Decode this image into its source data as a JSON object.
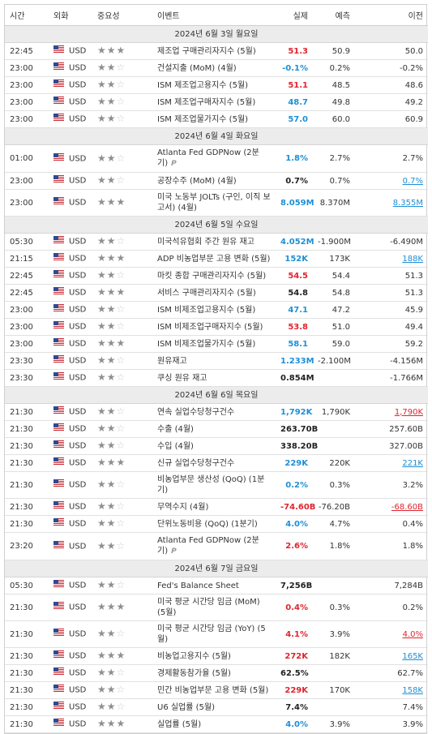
{
  "header": {
    "columns": [
      "시간",
      "외화",
      "중요성",
      "이벤트",
      "실제",
      "예측",
      "이전"
    ]
  },
  "days": [
    {
      "date": "2024년 6월 3일 월요일",
      "events": [
        {
          "time": "22:45",
          "currency": "USD",
          "importance": 3,
          "event": "제조업 구매관리자지수 (5월)",
          "actual": "51.3",
          "actual_color": "red",
          "forecast": "50.9",
          "previous": "50.0"
        },
        {
          "time": "23:00",
          "currency": "USD",
          "importance": 2,
          "event": "건설지출 (MoM) (4월)",
          "actual": "-0.1%",
          "actual_color": "blue",
          "forecast": "0.2%",
          "previous": "-0.2%"
        },
        {
          "time": "23:00",
          "currency": "USD",
          "importance": 2,
          "event": "ISM 제조업고용지수 (5월)",
          "actual": "51.1",
          "actual_color": "red",
          "forecast": "48.5",
          "previous": "48.6"
        },
        {
          "time": "23:00",
          "currency": "USD",
          "importance": 2,
          "event": "ISM 제조업구매자지수 (5월)",
          "actual": "48.7",
          "actual_color": "blue",
          "forecast": "49.8",
          "previous": "49.2"
        },
        {
          "time": "23:00",
          "currency": "USD",
          "importance": 2,
          "event": "ISM 제조업물가지수 (5월)",
          "actual": "57.0",
          "actual_color": "blue",
          "forecast": "60.0",
          "previous": "60.9"
        }
      ]
    },
    {
      "date": "2024년 6월 4일 화요일",
      "events": [
        {
          "time": "01:00",
          "currency": "USD",
          "importance": 2,
          "event": "Atlanta Fed GDPNow (2분기)",
          "badge": "P",
          "actual": "1.8%",
          "actual_color": "blue",
          "forecast": "2.7%",
          "previous": "2.7%"
        },
        {
          "time": "23:00",
          "currency": "USD",
          "importance": 2,
          "event": "공장수주 (MoM) (4월)",
          "actual": "0.7%",
          "actual_color": "black",
          "forecast": "0.7%",
          "previous": "0.7%",
          "previous_revised": "blue"
        },
        {
          "time": "23:00",
          "currency": "USD",
          "importance": 3,
          "event": "미국 노동부 JOLTs (구인, 이직 보고서) (4월)",
          "actual": "8.059M",
          "actual_color": "blue",
          "forecast": "8.370M",
          "previous": "8.355M",
          "previous_revised": "blue"
        }
      ]
    },
    {
      "date": "2024년 6월 5일 수요일",
      "events": [
        {
          "time": "05:30",
          "currency": "USD",
          "importance": 2,
          "event": "미국석유협회 주간 원유 재고",
          "actual": "4.052M",
          "actual_color": "blue",
          "forecast": "-1.900M",
          "previous": "-6.490M"
        },
        {
          "time": "21:15",
          "currency": "USD",
          "importance": 3,
          "event": "ADP 비농업부문 고용 변화 (5월)",
          "actual": "152K",
          "actual_color": "blue",
          "forecast": "173K",
          "previous": "188K",
          "previous_revised": "blue"
        },
        {
          "time": "22:45",
          "currency": "USD",
          "importance": 2,
          "event": "마킷 종합 구매관리자지수 (5월)",
          "actual": "54.5",
          "actual_color": "red",
          "forecast": "54.4",
          "previous": "51.3"
        },
        {
          "time": "22:45",
          "currency": "USD",
          "importance": 3,
          "event": "서비스 구매관리자지수 (5월)",
          "actual": "54.8",
          "actual_color": "black",
          "forecast": "54.8",
          "previous": "51.3"
        },
        {
          "time": "23:00",
          "currency": "USD",
          "importance": 2,
          "event": "ISM 비제조업고용지수 (5월)",
          "actual": "47.1",
          "actual_color": "blue",
          "forecast": "47.2",
          "previous": "45.9"
        },
        {
          "time": "23:00",
          "currency": "USD",
          "importance": 2,
          "event": "ISM 비제조업구매자지수 (5월)",
          "actual": "53.8",
          "actual_color": "red",
          "forecast": "51.0",
          "previous": "49.4"
        },
        {
          "time": "23:00",
          "currency": "USD",
          "importance": 3,
          "event": "ISM 비제조업물가지수 (5월)",
          "actual": "58.1",
          "actual_color": "blue",
          "forecast": "59.0",
          "previous": "59.2"
        },
        {
          "time": "23:30",
          "currency": "USD",
          "importance": 2,
          "event": "원유재고",
          "actual": "1.233M",
          "actual_color": "blue",
          "forecast": "-2.100M",
          "previous": "-4.156M"
        },
        {
          "time": "23:30",
          "currency": "USD",
          "importance": 2,
          "event": "쿠싱 원유 재고",
          "actual": "0.854M",
          "actual_color": "black",
          "forecast": null,
          "previous": "-1.766M"
        }
      ]
    },
    {
      "date": "2024년 6월 6일 목요일",
      "events": [
        {
          "time": "21:30",
          "currency": "USD",
          "importance": 2,
          "event": "연속 실업수당청구건수",
          "actual": "1,792K",
          "actual_color": "blue",
          "forecast": "1,790K",
          "previous": "1,790K",
          "previous_revised": "red"
        },
        {
          "time": "21:30",
          "currency": "USD",
          "importance": 2,
          "event": "수출 (4월)",
          "actual": "263.70B",
          "actual_color": "black",
          "forecast": null,
          "previous": "257.60B"
        },
        {
          "time": "21:30",
          "currency": "USD",
          "importance": 2,
          "event": "수입 (4월)",
          "actual": "338.20B",
          "actual_color": "black",
          "forecast": null,
          "previous": "327.00B"
        },
        {
          "time": "21:30",
          "currency": "USD",
          "importance": 3,
          "event": "신규 실업수당청구건수",
          "actual": "229K",
          "actual_color": "blue",
          "forecast": "220K",
          "previous": "221K",
          "previous_revised": "blue"
        },
        {
          "time": "21:30",
          "currency": "USD",
          "importance": 2,
          "event": "비농업부문 생산성 (QoQ) (1분기)",
          "actual": "0.2%",
          "actual_color": "blue",
          "forecast": "0.3%",
          "previous": "3.2%"
        },
        {
          "time": "21:30",
          "currency": "USD",
          "importance": 2,
          "event": "무역수지 (4월)",
          "actual": "-74.60B",
          "actual_color": "red",
          "forecast": "-76.20B",
          "previous": "-68.60B",
          "previous_revised": "red"
        },
        {
          "time": "21:30",
          "currency": "USD",
          "importance": 2,
          "event": "단위노동비용 (QoQ) (1분기)",
          "actual": "4.0%",
          "actual_color": "blue",
          "forecast": "4.7%",
          "previous": "0.4%"
        },
        {
          "time": "23:20",
          "currency": "USD",
          "importance": 2,
          "event": "Atlanta Fed GDPNow (2분기)",
          "badge": "P",
          "actual": "2.6%",
          "actual_color": "red",
          "forecast": "1.8%",
          "previous": "1.8%"
        }
      ]
    },
    {
      "date": "2024년 6월 7일 금요일",
      "events": [
        {
          "time": "05:30",
          "currency": "USD",
          "importance": 2,
          "event": "Fed's Balance Sheet",
          "actual": "7,256B",
          "actual_color": "black",
          "forecast": null,
          "previous": "7,284B"
        },
        {
          "time": "21:30",
          "currency": "USD",
          "importance": 3,
          "event": "미국 평균 시간당 임금 (MoM) (5월)",
          "actual": "0.4%",
          "actual_color": "red",
          "forecast": "0.3%",
          "previous": "0.2%"
        },
        {
          "time": "21:30",
          "currency": "USD",
          "importance": 2,
          "event": "미국 평균 시간당 임금 (YoY) (5월)",
          "actual": "4.1%",
          "actual_color": "red",
          "forecast": "3.9%",
          "previous": "4.0%",
          "previous_revised": "red"
        },
        {
          "time": "21:30",
          "currency": "USD",
          "importance": 3,
          "event": "비농업고용지수 (5월)",
          "actual": "272K",
          "actual_color": "red",
          "forecast": "182K",
          "previous": "165K",
          "previous_revised": "blue"
        },
        {
          "time": "21:30",
          "currency": "USD",
          "importance": 2,
          "event": "경제활동참가율 (5월)",
          "actual": "62.5%",
          "actual_color": "black",
          "forecast": null,
          "previous": "62.7%"
        },
        {
          "time": "21:30",
          "currency": "USD",
          "importance": 2,
          "event": "민간 비농업부문 고용 변화 (5월)",
          "actual": "229K",
          "actual_color": "red",
          "forecast": "170K",
          "previous": "158K",
          "previous_revised": "blue"
        },
        {
          "time": "21:30",
          "currency": "USD",
          "importance": 2,
          "event": "U6 실업률 (5월)",
          "actual": "7.4%",
          "actual_color": "black",
          "forecast": null,
          "previous": "7.4%"
        },
        {
          "time": "21:30",
          "currency": "USD",
          "importance": 3,
          "event": "실업률 (5월)",
          "actual": "4.0%",
          "actual_color": "blue",
          "forecast": "3.9%",
          "previous": "3.9%"
        }
      ]
    }
  ]
}
